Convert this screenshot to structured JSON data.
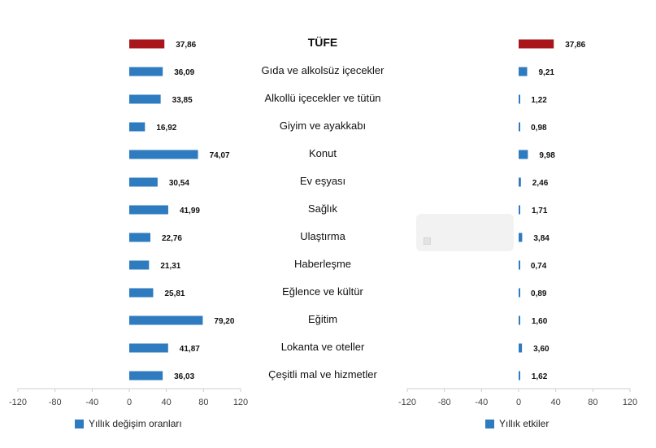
{
  "colors": {
    "bar": "#2e7bbf",
    "highlight": "#a8161b",
    "axis": "#cfcfcf"
  },
  "legend": {
    "left_label": "Yıllık değişim oranları",
    "right_label": "Yıllık etkiler"
  },
  "chart_data": [
    {
      "type": "bar",
      "orientation": "horizontal",
      "categories": [
        "TÜFE",
        "Gıda ve alkolsüz içecekler",
        "Alkollü içecekler ve tütün",
        "Giyim ve ayakkabı",
        "Konut",
        "Ev eşyası",
        "Sağlık",
        "Ulaştırma",
        "Haberleşme",
        "Eğlence ve kültür",
        "Eğitim",
        "Lokanta ve oteller",
        "Çeşitli mal ve hizmetler"
      ],
      "series": [
        {
          "name": "Yıllık değişim oranları",
          "values": [
            37.86,
            36.09,
            33.85,
            16.92,
            74.07,
            30.54,
            41.99,
            22.76,
            21.31,
            25.81,
            79.2,
            41.87,
            36.03
          ],
          "value_labels": [
            "37,86",
            "36,09",
            "33,85",
            "16,92",
            "74,07",
            "30,54",
            "41,99",
            "22,76",
            "21,31",
            "25,81",
            "79,20",
            "41,87",
            "36,03"
          ]
        }
      ],
      "xlim": [
        -120,
        120
      ],
      "xticks": [
        "-120",
        "-80",
        "-40",
        "0",
        "40",
        "80",
        "120"
      ],
      "highlight_index": 0
    },
    {
      "type": "bar",
      "orientation": "horizontal",
      "categories": [
        "TÜFE",
        "Gıda ve alkolsüz içecekler",
        "Alkollü içecekler ve tütün",
        "Giyim ve ayakkabı",
        "Konut",
        "Ev eşyası",
        "Sağlık",
        "Ulaştırma",
        "Haberleşme",
        "Eğlence ve kültür",
        "Eğitim",
        "Lokanta ve oteller",
        "Çeşitli mal ve hizmetler"
      ],
      "series": [
        {
          "name": "Yıllık etkiler",
          "values": [
            37.86,
            9.21,
            1.22,
            0.98,
            9.98,
            2.46,
            1.71,
            3.84,
            0.74,
            0.89,
            1.6,
            3.6,
            1.62
          ],
          "value_labels": [
            "37,86",
            "9,21",
            "1,22",
            "0,98",
            "9,98",
            "2,46",
            "1,71",
            "3,84",
            "0,74",
            "0,89",
            "1,60",
            "3,60",
            "1,62"
          ]
        }
      ],
      "xlim": [
        -120,
        120
      ],
      "xticks": [
        "-120",
        "-80",
        "-40",
        "0",
        "40",
        "80",
        "120"
      ],
      "highlight_index": 0
    }
  ]
}
